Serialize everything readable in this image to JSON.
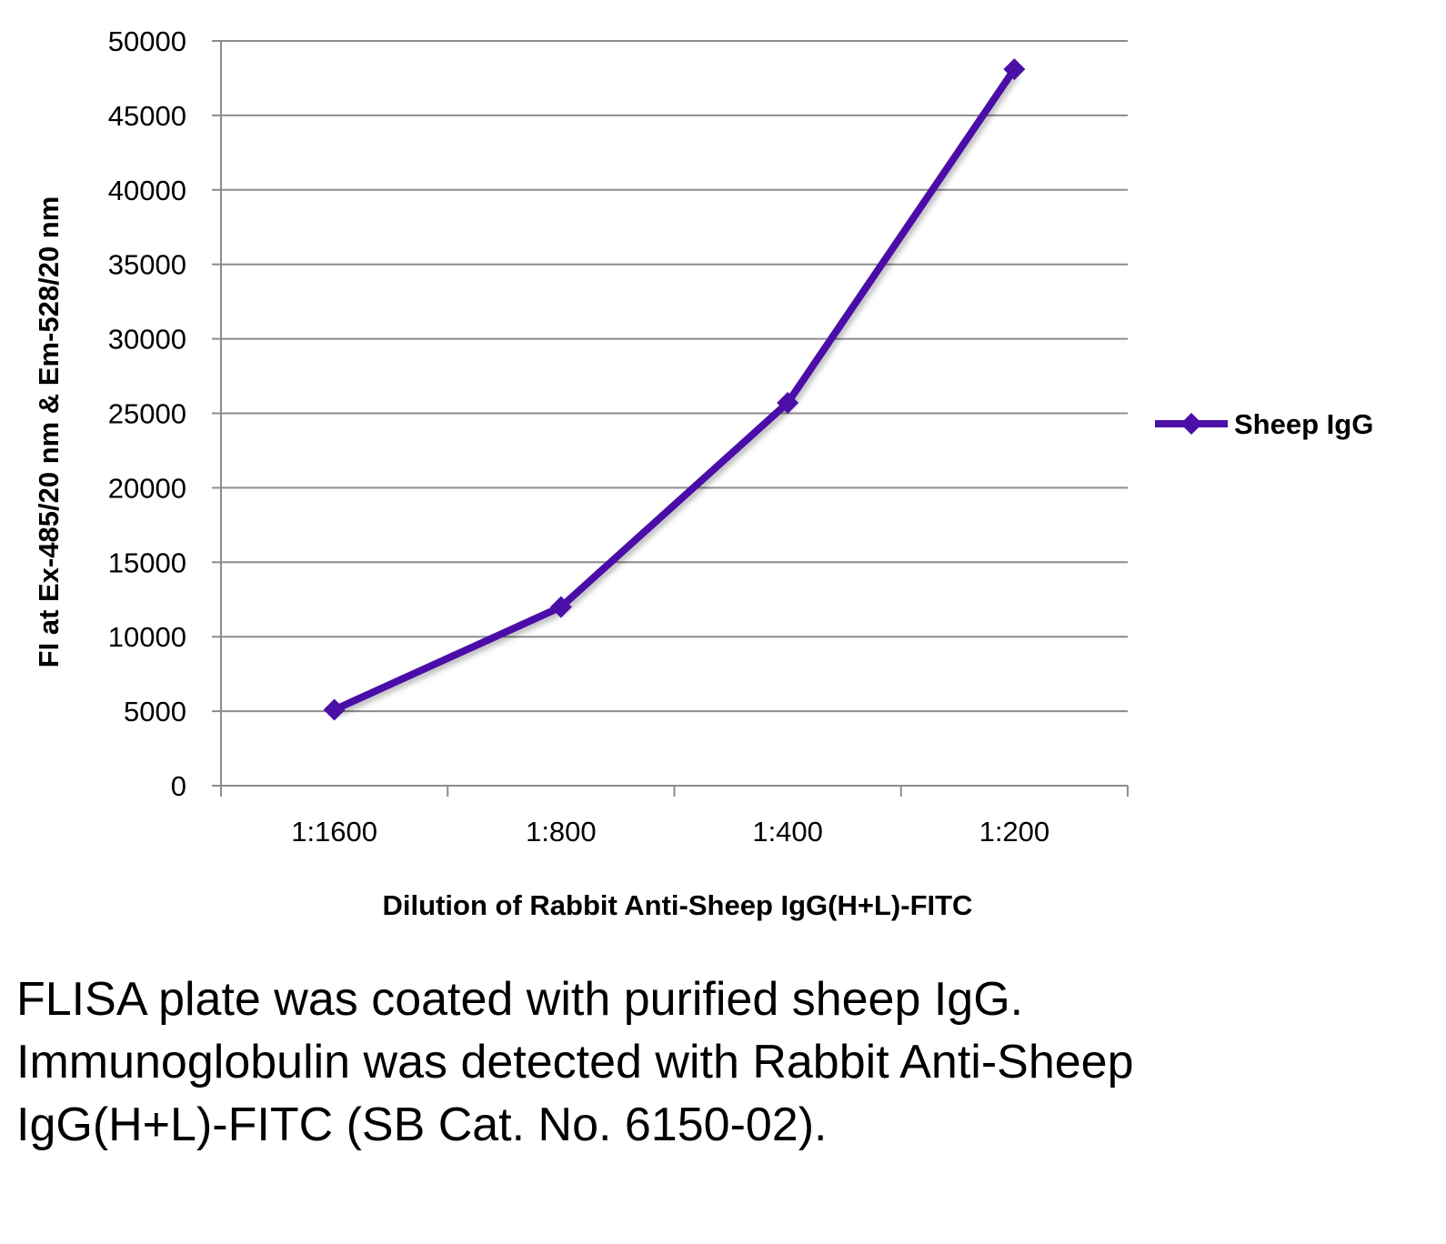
{
  "chart_data": {
    "type": "line",
    "categories": [
      "1:1600",
      "1:800",
      "1:400",
      "1:200"
    ],
    "series": [
      {
        "name": "Sheep IgG",
        "values": [
          5100,
          12000,
          25700,
          48100
        ],
        "color": "#4b0fa8"
      }
    ],
    "xlabel": "Dilution of Rabbit Anti-Sheep IgG(H+L)-FITC",
    "ylabel": "FI at Ex-485/20 nm & Em-528/20 nm",
    "ylim": [
      0,
      50000
    ],
    "yticks": [
      0,
      5000,
      10000,
      15000,
      20000,
      25000,
      30000,
      35000,
      40000,
      45000,
      50000
    ],
    "grid": true,
    "legend_position": "right",
    "marker": "diamond-icon"
  },
  "caption": "FLISA plate was coated with purified sheep IgG.  Immunoglobulin was detected with Rabbit Anti-Sheep IgG(H+L)-FITC (SB Cat. No. 6150-02)."
}
